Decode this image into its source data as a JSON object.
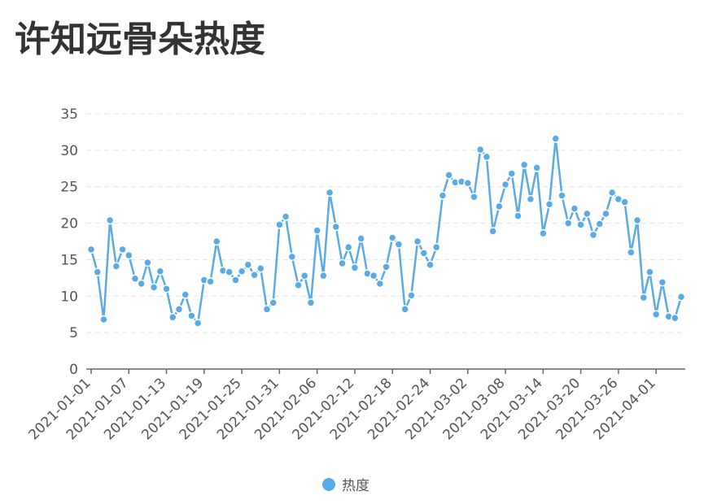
{
  "chart_data": {
    "type": "line",
    "title": "许知远骨朵热度",
    "x": [
      "2021-01-01",
      "2021-01-02",
      "2021-01-03",
      "2021-01-04",
      "2021-01-05",
      "2021-01-06",
      "2021-01-07",
      "2021-01-08",
      "2021-01-09",
      "2021-01-10",
      "2021-01-11",
      "2021-01-12",
      "2021-01-13",
      "2021-01-14",
      "2021-01-15",
      "2021-01-16",
      "2021-01-17",
      "2021-01-18",
      "2021-01-19",
      "2021-01-20",
      "2021-01-21",
      "2021-01-22",
      "2021-01-23",
      "2021-01-24",
      "2021-01-25",
      "2021-01-26",
      "2021-01-27",
      "2021-01-28",
      "2021-01-29",
      "2021-01-30",
      "2021-01-31",
      "2021-02-01",
      "2021-02-02",
      "2021-02-03",
      "2021-02-04",
      "2021-02-05",
      "2021-02-06",
      "2021-02-07",
      "2021-02-08",
      "2021-02-09",
      "2021-02-10",
      "2021-02-11",
      "2021-02-12",
      "2021-02-13",
      "2021-02-14",
      "2021-02-15",
      "2021-02-16",
      "2021-02-17",
      "2021-02-18",
      "2021-02-19",
      "2021-02-20",
      "2021-02-21",
      "2021-02-22",
      "2021-02-23",
      "2021-02-24",
      "2021-02-25",
      "2021-02-26",
      "2021-02-27",
      "2021-02-28",
      "2021-03-01",
      "2021-03-02",
      "2021-03-03",
      "2021-03-04",
      "2021-03-05",
      "2021-03-06",
      "2021-03-07",
      "2021-03-08",
      "2021-03-09",
      "2021-03-10",
      "2021-03-11",
      "2021-03-12",
      "2021-03-13",
      "2021-03-14",
      "2021-03-15",
      "2021-03-16",
      "2021-03-17",
      "2021-03-18",
      "2021-03-19",
      "2021-03-20",
      "2021-03-21",
      "2021-03-22",
      "2021-03-23",
      "2021-03-24",
      "2021-03-25",
      "2021-03-26",
      "2021-03-27",
      "2021-03-28",
      "2021-03-29",
      "2021-03-30",
      "2021-03-31",
      "2021-04-01",
      "2021-04-02",
      "2021-04-03",
      "2021-04-04",
      "2021-04-05"
    ],
    "series": [
      {
        "name": "热度",
        "color": "#5aaae6",
        "values": [
          16.4,
          13.3,
          6.8,
          20.4,
          14.1,
          16.4,
          15.6,
          12.4,
          11.7,
          14.6,
          11.2,
          13.4,
          11,
          7.1,
          8.2,
          10.2,
          7.3,
          6.3,
          12.2,
          12,
          17.5,
          13.5,
          13.3,
          12.2,
          13.4,
          14.3,
          12.9,
          13.8,
          8.2,
          9.1,
          19.8,
          20.9,
          15.4,
          11.5,
          12.8,
          9.1,
          19,
          12.8,
          24.2,
          19.5,
          14.5,
          16.7,
          13.9,
          17.9,
          13.1,
          12.8,
          11.7,
          14,
          18,
          17.1,
          8.2,
          10.1,
          17.5,
          15.9,
          14.3,
          16.7,
          23.8,
          26.6,
          25.6,
          25.7,
          25.5,
          23.6,
          30.1,
          29.1,
          18.9,
          22.3,
          25.3,
          26.8,
          21,
          28,
          23.3,
          27.6,
          18.6,
          22.6,
          31.6,
          23.8,
          20,
          22,
          19.8,
          21.3,
          18.4,
          19.9,
          21.3,
          24.2,
          23.3,
          22.9,
          16,
          20.4,
          9.8,
          13.3,
          7.5,
          11.9,
          7.2,
          7,
          9.9
        ]
      }
    ],
    "xticks": [
      "2021-01-01",
      "2021-01-07",
      "2021-01-13",
      "2021-01-19",
      "2021-01-25",
      "2021-01-31",
      "2021-02-06",
      "2021-02-12",
      "2021-02-18",
      "2021-02-24",
      "2021-03-02",
      "2021-03-08",
      "2021-03-14",
      "2021-03-20",
      "2021-03-26",
      "2021-04-01"
    ],
    "ylim": [
      0,
      35
    ],
    "yticks": [
      0,
      5,
      10,
      15,
      20,
      25,
      30,
      35
    ],
    "grid": true,
    "legend": "bottom"
  }
}
